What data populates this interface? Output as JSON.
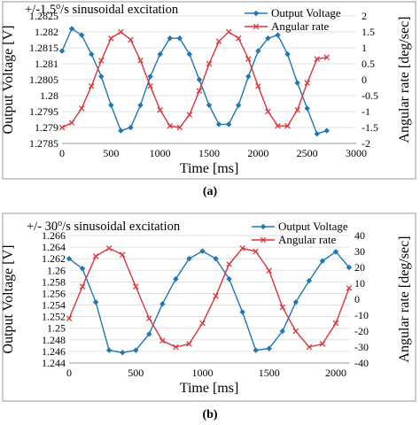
{
  "colors": {
    "voltage": "#1f77b4",
    "rate": "#d9343a",
    "grid": "#d9d9d9"
  },
  "chart_data": [
    {
      "type": "line",
      "panel_label": "(a)",
      "title_prefix": "+/-1.5",
      "title_sup": "o",
      "title_suffix": "/s sinusoidal excitation",
      "xlabel": "Time [ms]",
      "ylabel_left": "Output Voltage [V]",
      "ylabel_right": "Angular rate [deg/sec]",
      "xlim": [
        0,
        3000
      ],
      "xticks": [
        0,
        500,
        1000,
        1500,
        2000,
        2500,
        3000
      ],
      "ylim_left": [
        1.2785,
        1.2825
      ],
      "yticks_left": [
        "1.2785",
        "1.279",
        "1.2795",
        "1.28",
        "1.2805",
        "1.281",
        "1.2815",
        "1.282",
        "1.2825"
      ],
      "ylim_right": [
        -2,
        2
      ],
      "yticks_right": [
        "-2",
        "-1.5",
        "-1",
        "-0.5",
        "0",
        "0.5",
        "1",
        "1.5",
        "2"
      ],
      "legend_position": "top-right",
      "series": [
        {
          "name": "Output Voltage",
          "axis": "left",
          "marker": "diamond",
          "x": [
            0,
            100,
            200,
            300,
            400,
            500,
            600,
            700,
            800,
            900,
            1000,
            1100,
            1200,
            1300,
            1400,
            1500,
            1600,
            1700,
            1800,
            1900,
            2000,
            2100,
            2200,
            2300,
            2400,
            2500,
            2600,
            2700
          ],
          "y": [
            1.2814,
            1.2821,
            1.2819,
            1.2813,
            1.2806,
            1.2797,
            1.2789,
            1.279,
            1.2797,
            1.2806,
            1.2813,
            1.2818,
            1.2818,
            1.2813,
            1.2805,
            1.2797,
            1.2791,
            1.2791,
            1.2797,
            1.2806,
            1.2814,
            1.2818,
            1.2819,
            1.2813,
            1.2804,
            1.2796,
            1.2788,
            1.2789
          ]
        },
        {
          "name": "Angular rate",
          "axis": "right",
          "marker": "x",
          "x": [
            0,
            100,
            200,
            300,
            400,
            500,
            600,
            700,
            800,
            900,
            1000,
            1100,
            1200,
            1300,
            1400,
            1500,
            1600,
            1700,
            1800,
            1900,
            2000,
            2100,
            2200,
            2300,
            2400,
            2500,
            2600,
            2700
          ],
          "y": [
            -1.5,
            -1.35,
            -0.9,
            -0.2,
            0.6,
            1.3,
            1.5,
            1.25,
            0.6,
            -0.2,
            -0.95,
            -1.45,
            -1.5,
            -1.1,
            -0.35,
            0.5,
            1.2,
            1.5,
            1.3,
            0.65,
            -0.2,
            -1.0,
            -1.45,
            -1.45,
            -0.95,
            -0.1,
            0.65,
            0.7
          ]
        }
      ]
    },
    {
      "type": "line",
      "panel_label": "(b)",
      "title_prefix": "+/- 30",
      "title_sup": "o",
      "title_suffix": "/s sinusoidal excitation",
      "xlabel": "Time [ms]",
      "ylabel_left": "Output Voltage [V]",
      "ylabel_right": "Angular rate [deg/sec]",
      "xlim": [
        0,
        2100
      ],
      "xticks": [
        0,
        500,
        1000,
        1500,
        2000
      ],
      "ylim_left": [
        1.244,
        1.266
      ],
      "yticks_left": [
        "1.244",
        "1.246",
        "1.248",
        "1.25",
        "1.252",
        "1.254",
        "1.256",
        "1.258",
        "1.26",
        "1.262",
        "1.264",
        "1.266"
      ],
      "ylim_right": [
        -40,
        40
      ],
      "yticks_right": [
        "-40",
        "-30",
        "-20",
        "-10",
        "0",
        "10",
        "20",
        "30",
        "40"
      ],
      "legend_position": "top-right",
      "series": [
        {
          "name": "Output Voltage",
          "axis": "left",
          "marker": "diamond",
          "x": [
            0,
            100,
            200,
            300,
            400,
            500,
            600,
            700,
            800,
            900,
            1000,
            1100,
            1200,
            1300,
            1400,
            1500,
            1600,
            1700,
            1800,
            1900,
            2000,
            2100
          ],
          "y": [
            1.262,
            1.2603,
            1.2545,
            1.2462,
            1.2458,
            1.2462,
            1.249,
            1.2542,
            1.2585,
            1.262,
            1.2633,
            1.262,
            1.2585,
            1.2528,
            1.2462,
            1.2465,
            1.2495,
            1.2545,
            1.2582,
            1.2616,
            1.2632,
            1.2605
          ]
        },
        {
          "name": "Angular rate",
          "axis": "right",
          "marker": "x",
          "x": [
            0,
            100,
            200,
            300,
            400,
            500,
            600,
            700,
            800,
            900,
            1000,
            1100,
            1200,
            1300,
            1400,
            1500,
            1600,
            1700,
            1800,
            1900,
            2000,
            2100
          ],
          "y": [
            -12,
            8,
            27,
            32,
            28,
            8,
            -12,
            -26,
            -30,
            -28,
            -15,
            2,
            22,
            32,
            30,
            18,
            -5,
            -20,
            -30,
            -28,
            -15,
            7
          ]
        }
      ]
    }
  ]
}
